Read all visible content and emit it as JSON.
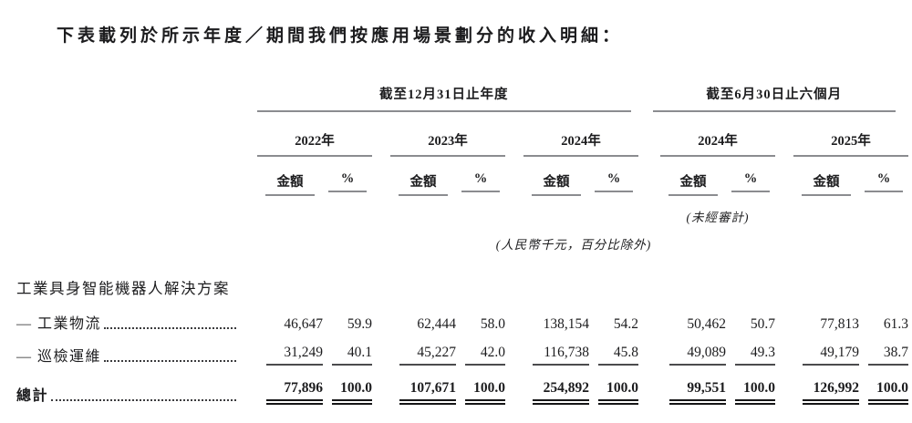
{
  "title": "下表載列於所示年度／期間我們按應用場景劃分的收入明細：",
  "table": {
    "group_headers": {
      "annual": "截至12月31日止年度",
      "interim": "截至6月30日止六個月"
    },
    "year_headers": [
      "2022年",
      "2023年",
      "2024年",
      "2024年",
      "2025年"
    ],
    "amount_label": "金額",
    "pct_label": "%",
    "unaudited_note": "(未經審計)",
    "unit_note": "(人民幣千元，百分比除外)",
    "section_header": "工業具身智能機器人解決方案",
    "rows": [
      {
        "label": "— 工業物流",
        "values": [
          "46,647",
          "59.9",
          "62,444",
          "58.0",
          "138,154",
          "54.2",
          "50,462",
          "50.7",
          "77,813",
          "61.3"
        ]
      },
      {
        "label": "— 巡檢運維",
        "values": [
          "31,249",
          "40.1",
          "45,227",
          "42.0",
          "116,738",
          "45.8",
          "49,089",
          "49.3",
          "49,179",
          "38.7"
        ]
      }
    ],
    "total": {
      "label": "總計",
      "values": [
        "77,896",
        "100.0",
        "107,671",
        "100.0",
        "254,892",
        "100.0",
        "99,551",
        "100.0",
        "126,992",
        "100.0"
      ]
    }
  }
}
